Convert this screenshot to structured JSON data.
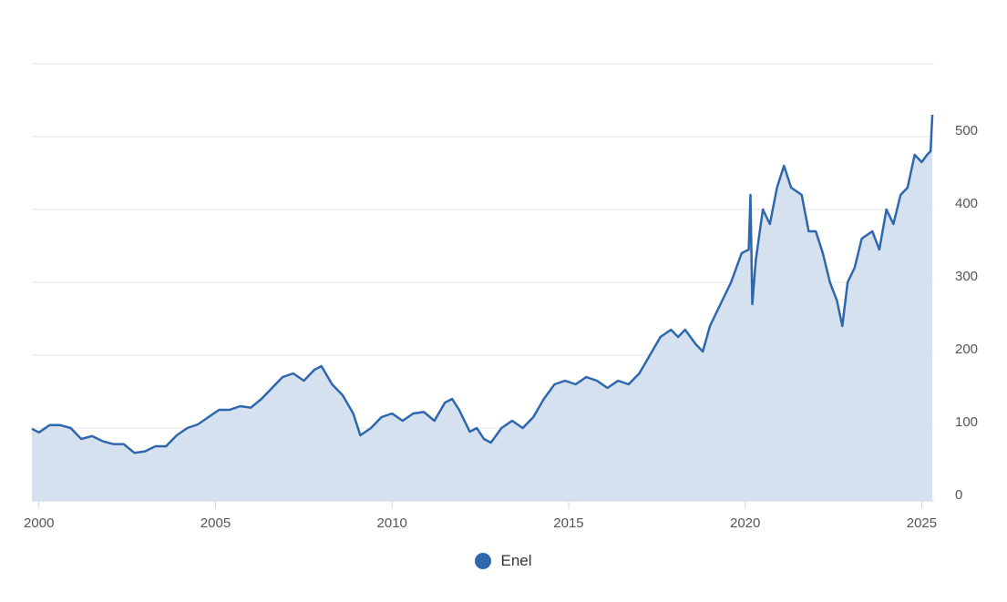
{
  "colors": {
    "line": "#2e67ad",
    "area": "#d6e1ef",
    "grid": "#e3e3e3",
    "tick_text": "#555555"
  },
  "chart_data": {
    "type": "area",
    "title": "",
    "xlabel": "",
    "ylabel": "",
    "xlim": [
      1999.8,
      2025.35
    ],
    "ylim": [
      0,
      600
    ],
    "x_ticks": [
      "2000",
      "2005",
      "2010",
      "2015",
      "2020",
      "2025"
    ],
    "y_ticks": [
      "0",
      "100",
      "200",
      "300",
      "400",
      "500"
    ],
    "grid": true,
    "legend_position": "bottom-center",
    "series": [
      {
        "name": "Enel",
        "x": [
          1999.8,
          2000.0,
          2000.3,
          2000.6,
          2000.9,
          2001.2,
          2001.5,
          2001.8,
          2002.1,
          2002.4,
          2002.7,
          2003.0,
          2003.3,
          2003.6,
          2003.9,
          2004.2,
          2004.5,
          2004.8,
          2005.1,
          2005.4,
          2005.7,
          2006.0,
          2006.3,
          2006.6,
          2006.9,
          2007.2,
          2007.5,
          2007.8,
          2008.0,
          2008.3,
          2008.6,
          2008.9,
          2009.1,
          2009.4,
          2009.7,
          2010.0,
          2010.3,
          2010.6,
          2010.9,
          2011.2,
          2011.5,
          2011.7,
          2011.9,
          2012.2,
          2012.4,
          2012.6,
          2012.8,
          2013.1,
          2013.4,
          2013.7,
          2014.0,
          2014.3,
          2014.6,
          2014.9,
          2015.2,
          2015.5,
          2015.8,
          2016.1,
          2016.4,
          2016.7,
          2017.0,
          2017.3,
          2017.6,
          2017.9,
          2018.1,
          2018.3,
          2018.6,
          2018.8,
          2019.0,
          2019.3,
          2019.6,
          2019.9,
          2020.1,
          2020.15,
          2020.2,
          2020.3,
          2020.5,
          2020.7,
          2020.9,
          2021.1,
          2021.3,
          2021.6,
          2021.8,
          2022.0,
          2022.2,
          2022.4,
          2022.6,
          2022.75,
          2022.9,
          2023.1,
          2023.3,
          2023.6,
          2023.8,
          2024.0,
          2024.2,
          2024.4,
          2024.6,
          2024.8,
          2025.0,
          2025.15,
          2025.25,
          2025.3
        ],
        "y": [
          99,
          94,
          104,
          104,
          100,
          85,
          89,
          82,
          78,
          78,
          66,
          68,
          75,
          75,
          90,
          100,
          105,
          115,
          125,
          125,
          130,
          128,
          140,
          155,
          170,
          175,
          165,
          180,
          185,
          160,
          145,
          120,
          90,
          100,
          115,
          120,
          110,
          120,
          122,
          110,
          135,
          140,
          125,
          95,
          100,
          85,
          80,
          100,
          110,
          100,
          115,
          140,
          160,
          165,
          160,
          170,
          165,
          155,
          165,
          160,
          175,
          200,
          225,
          235,
          225,
          235,
          215,
          205,
          240,
          270,
          300,
          340,
          345,
          420,
          270,
          330,
          400,
          380,
          430,
          460,
          430,
          420,
          370,
          370,
          340,
          300,
          275,
          240,
          300,
          320,
          360,
          370,
          345,
          400,
          380,
          420,
          430,
          475,
          465,
          475,
          480,
          530
        ]
      }
    ]
  }
}
